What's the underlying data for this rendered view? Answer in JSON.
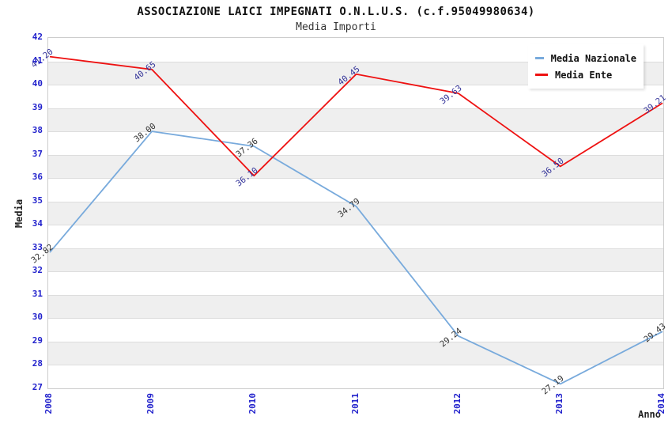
{
  "title": "ASSOCIAZIONE LAICI IMPEGNATI O.N.L.U.S. (c.f.95049980634)",
  "subtitle": "Media Importi",
  "legend": {
    "position": "top-right",
    "items": [
      {
        "label": "Media Nazionale",
        "color": "#78aadc"
      },
      {
        "label": "Media Ente",
        "color": "#ee1111"
      }
    ]
  },
  "colors": {
    "tick_label": "#2222cc",
    "band": "#efefef",
    "gridline": "#dddddd",
    "plot_border": "#cccccc",
    "title_text": "#111111",
    "subtitle_text": "#333333"
  },
  "chart_data": {
    "type": "line",
    "title": "ASSOCIAZIONE LAICI IMPEGNATI O.N.L.U.S. (c.f.95049980634)",
    "subtitle": "Media Importi",
    "xlabel": "Anno",
    "ylabel": "Media",
    "x": [
      2008,
      2009,
      2010,
      2011,
      2012,
      2013,
      2014
    ],
    "ylim": [
      27,
      42
    ],
    "y_ticks": [
      27,
      28,
      29,
      30,
      31,
      32,
      33,
      34,
      35,
      36,
      37,
      38,
      39,
      40,
      41,
      42
    ],
    "grid": true,
    "band_color": "#efefef",
    "gridline_color": "#dddddd",
    "legend_position": "top-right",
    "series": [
      {
        "name": "Media Nazionale",
        "color": "#78aadc",
        "label_color": "#333333",
        "values": [
          32.82,
          38.0,
          37.36,
          34.79,
          29.24,
          27.19,
          29.43
        ],
        "labels": [
          "32.82",
          "38.00",
          "37.36",
          "34.79",
          "29.24",
          "27.19",
          "29.43"
        ]
      },
      {
        "name": "Media Ente",
        "color": "#ee1111",
        "label_color": "#333399",
        "values": [
          41.2,
          40.65,
          36.1,
          40.45,
          39.63,
          36.5,
          39.21
        ],
        "labels": [
          "41.20",
          "40.65",
          "36.10",
          "40.45",
          "39.63",
          "36.50",
          "39.21"
        ]
      }
    ]
  }
}
